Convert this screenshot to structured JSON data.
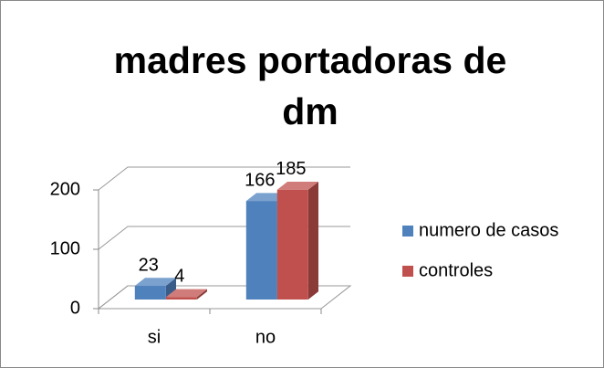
{
  "chart_data": {
    "type": "bar3d",
    "title": "madres portadoras de dm",
    "categories": [
      "si",
      "no"
    ],
    "series": [
      {
        "name": "numero de casos",
        "color": "#4f81bd",
        "values": [
          23,
          166
        ]
      },
      {
        "name": "controles",
        "color": "#c0504d",
        "values": [
          4,
          185
        ]
      }
    ],
    "ylim": [
      0,
      200
    ],
    "yticks": [
      0,
      100,
      200
    ],
    "grid": true,
    "legend": "right"
  }
}
